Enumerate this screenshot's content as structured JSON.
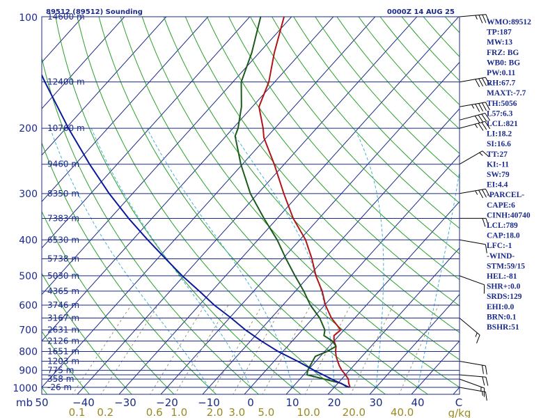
{
  "chart_data": {
    "type": "line",
    "subtype": "skew-t log-p sounding",
    "title": "89512 (89512) Sounding",
    "valid_time": "0000Z 14 AUG 25",
    "pressure_axis": {
      "corner_label": "mb",
      "range_mb": [
        1000,
        100
      ],
      "scale": "log",
      "ticks": [
        100,
        200,
        300,
        400,
        500,
        600,
        700,
        800,
        900,
        1000
      ]
    },
    "temperature_axis": {
      "unit_label": "C",
      "range_c": [
        -50,
        50
      ],
      "ticks": [
        -50,
        -40,
        -30,
        -20,
        -10,
        0,
        10,
        20,
        30,
        40
      ],
      "tick_labels": [
        "50",
        "−40",
        "−30",
        "−20",
        "−10",
        "0",
        "10",
        "20",
        "30",
        "40"
      ]
    },
    "mixing_ratio_axis": {
      "unit_label": "g/kg",
      "ticks": [
        {
          "value": 0.1,
          "label": "0.1"
        },
        {
          "value": 0.2,
          "label": "0.2"
        },
        {
          "value": 0.6,
          "label": "0.6"
        },
        {
          "value": 1.0,
          "label": "1.0"
        },
        {
          "value": 2.0,
          "label": "2.0"
        },
        {
          "value": 3.0,
          "label": "3.0"
        },
        {
          "value": 5.0,
          "label": "5.0"
        },
        {
          "value": 10.0,
          "label": "10.0"
        },
        {
          "value": 20.0,
          "label": "20.0"
        },
        {
          "value": 40.0,
          "label": "40.0"
        }
      ]
    },
    "height_labels": [
      {
        "p": 100,
        "label": "14600 m"
      },
      {
        "p": 150,
        "label": "12400 m"
      },
      {
        "p": 200,
        "label": "10760 m"
      },
      {
        "p": 250,
        "label": "9460 m"
      },
      {
        "p": 300,
        "label": "8350 m"
      },
      {
        "p": 350,
        "label": "7383 m"
      },
      {
        "p": 400,
        "label": "6530 m"
      },
      {
        "p": 450,
        "label": "5738 m"
      },
      {
        "p": 500,
        "label": "5030 m"
      },
      {
        "p": 550,
        "label": "4365 m"
      },
      {
        "p": 600,
        "label": "3746 m"
      },
      {
        "p": 650,
        "label": "3167 m"
      },
      {
        "p": 700,
        "label": "2631 m"
      },
      {
        "p": 750,
        "label": "2126 m"
      },
      {
        "p": 800,
        "label": "1651 m"
      },
      {
        "p": 850,
        "label": "1203 m"
      },
      {
        "p": 900,
        "label": "775 m"
      },
      {
        "p": 950,
        "label": "358 m"
      },
      {
        "p": 1000,
        "label": "-26 m"
      }
    ],
    "grid": {
      "isobars_mb": [
        100,
        150,
        200,
        250,
        300,
        350,
        400,
        450,
        500,
        550,
        600,
        650,
        700,
        750,
        800,
        850,
        900,
        925,
        950,
        1000
      ],
      "isotherms_c": [
        -130,
        -120,
        -110,
        -100,
        -90,
        -80,
        -70,
        -60,
        -50,
        -40,
        -30,
        -20,
        -10,
        0,
        10,
        20,
        30,
        40,
        50
      ],
      "dry_adiabats_c": [
        -50,
        -40,
        -30,
        -20,
        -10,
        0,
        10,
        20,
        30,
        40,
        50,
        60,
        70,
        80,
        90,
        100,
        110,
        120,
        130,
        140,
        150,
        160,
        170,
        180,
        190,
        200,
        210,
        220,
        230,
        240,
        250
      ],
      "moist_adiabats_c": [
        -10,
        0,
        10,
        20,
        30,
        40
      ],
      "mixing_ratio_lines_gkg": [
        0.1,
        0.2,
        0.6,
        1.0,
        2.0,
        3.0,
        5.0,
        10.0,
        20.0,
        40.0
      ]
    },
    "series": [
      {
        "name": "temperature",
        "color": "#b01515",
        "points": [
          {
            "p": 1000,
            "t": 23.8
          },
          {
            "p": 975,
            "t": 22.6
          },
          {
            "p": 950,
            "t": 21.6
          },
          {
            "p": 925,
            "t": 20.0
          },
          {
            "p": 900,
            "t": 18.2
          },
          {
            "p": 875,
            "t": 16.6
          },
          {
            "p": 850,
            "t": 15.2
          },
          {
            "p": 825,
            "t": 13.8
          },
          {
            "p": 800,
            "t": 12.6
          },
          {
            "p": 775,
            "t": 11.6
          },
          {
            "p": 750,
            "t": 10.0
          },
          {
            "p": 725,
            "t": 8.8
          },
          {
            "p": 700,
            "t": 9.2
          },
          {
            "p": 650,
            "t": 4.4
          },
          {
            "p": 600,
            "t": 0.2
          },
          {
            "p": 550,
            "t": -3.6
          },
          {
            "p": 500,
            "t": -8.4
          },
          {
            "p": 450,
            "t": -13.0
          },
          {
            "p": 400,
            "t": -18.6
          },
          {
            "p": 350,
            "t": -26.2
          },
          {
            "p": 300,
            "t": -33.8
          },
          {
            "p": 250,
            "t": -42.4
          },
          {
            "p": 212,
            "t": -50.6
          },
          {
            "p": 200,
            "t": -52.8
          },
          {
            "p": 175,
            "t": -58.4
          },
          {
            "p": 150,
            "t": -61.4
          },
          {
            "p": 125,
            "t": -66.4
          },
          {
            "p": 100,
            "t": -71.8
          }
        ]
      },
      {
        "name": "dewpoint",
        "color": "#1a5a1a",
        "points": [
          {
            "p": 1000,
            "t": 23.2
          },
          {
            "p": 975,
            "t": 20.8
          },
          {
            "p": 950,
            "t": 15.8
          },
          {
            "p": 925,
            "t": 10.8
          },
          {
            "p": 900,
            "t": 10.0
          },
          {
            "p": 875,
            "t": 9.6
          },
          {
            "p": 850,
            "t": 9.2
          },
          {
            "p": 825,
            "t": 8.8
          },
          {
            "p": 800,
            "t": 10.6
          },
          {
            "p": 775,
            "t": 11.6
          },
          {
            "p": 750,
            "t": 9.6
          },
          {
            "p": 725,
            "t": 6.4
          },
          {
            "p": 700,
            "t": 5.4
          },
          {
            "p": 650,
            "t": 1.6
          },
          {
            "p": 600,
            "t": -3.4
          },
          {
            "p": 550,
            "t": -8.0
          },
          {
            "p": 500,
            "t": -13.4
          },
          {
            "p": 450,
            "t": -19.2
          },
          {
            "p": 400,
            "t": -25.4
          },
          {
            "p": 350,
            "t": -33.2
          },
          {
            "p": 300,
            "t": -41.8
          },
          {
            "p": 250,
            "t": -50.4
          },
          {
            "p": 210,
            "t": -57.8
          },
          {
            "p": 200,
            "t": -58.8
          },
          {
            "p": 175,
            "t": -62.6
          },
          {
            "p": 150,
            "t": -68.0
          },
          {
            "p": 125,
            "t": -71.8
          },
          {
            "p": 100,
            "t": -77.4
          }
        ]
      },
      {
        "name": "parcel",
        "color": "#0a1a9a",
        "points": [
          {
            "p": 1000,
            "t": 23.6
          },
          {
            "p": 950,
            "t": 17.6
          },
          {
            "p": 900,
            "t": 11.6
          },
          {
            "p": 850,
            "t": 5.6
          },
          {
            "p": 800,
            "t": -1.2
          },
          {
            "p": 750,
            "t": -7.4
          },
          {
            "p": 700,
            "t": -13.6
          },
          {
            "p": 650,
            "t": -19.6
          },
          {
            "p": 600,
            "t": -26.4
          },
          {
            "p": 550,
            "t": -33.0
          },
          {
            "p": 500,
            "t": -40.4
          },
          {
            "p": 450,
            "t": -48.0
          },
          {
            "p": 400,
            "t": -56.4
          },
          {
            "p": 350,
            "t": -65.6
          },
          {
            "p": 300,
            "t": -75.6
          },
          {
            "p": 250,
            "t": -86.6
          },
          {
            "p": 200,
            "t": -99.4
          },
          {
            "p": 150,
            "t": -115.0
          },
          {
            "p": 100,
            "t": -136.2
          }
        ]
      }
    ],
    "wind_barbs": [
      {
        "p": 100,
        "dir": 85,
        "spd": 35
      },
      {
        "p": 150,
        "dir": 80,
        "spd": 40
      },
      {
        "p": 175,
        "dir": 80,
        "spd": 45
      },
      {
        "p": 190,
        "dir": 75,
        "spd": 40
      },
      {
        "p": 200,
        "dir": 75,
        "spd": 35
      },
      {
        "p": 250,
        "dir": 60,
        "spd": 15
      },
      {
        "p": 300,
        "dir": 80,
        "spd": 35
      },
      {
        "p": 350,
        "dir": 90,
        "spd": 20
      },
      {
        "p": 400,
        "dir": 100,
        "spd": 10
      },
      {
        "p": 500,
        "dir": 110,
        "spd": 10
      },
      {
        "p": 650,
        "dir": 130,
        "spd": 15
      },
      {
        "p": 850,
        "dir": 100,
        "spd": 20
      },
      {
        "p": 925,
        "dir": 95,
        "spd": 20
      },
      {
        "p": 950,
        "dir": 110,
        "spd": 15
      },
      {
        "p": 1000,
        "dir": 100,
        "spd": 15
      }
    ],
    "indices": [
      "WMO:89512",
      "TP:187",
      "MW:13",
      "FRZ: BG",
      "WB0: BG",
      "PW:0.11",
      "RH:67.7",
      "MAXT:-7.7",
      "TH:5056",
      "L57:6.3",
      "LCL:821",
      "LI:18.2",
      "SI:16.6",
      "TT:27",
      "KI:-11",
      "SW:79",
      "EI:4.4",
      "-PARCEL-",
      "CAPE:6",
      "CINH:40740",
      "LCL:789",
      "CAP:18.0",
      "LFC:-1",
      "-WIND-",
      "STM:59/15",
      "HEL:-81",
      "SHR+:0.0",
      "SRDS:129",
      "EHI:0.0",
      "BRN:0.1",
      "BSHR:51"
    ],
    "colors": {
      "frame": "#1a2a8a",
      "isobar": "#1a2a8a",
      "isotherm": "#1a2a8a",
      "dry_adiabat": "#2aa02a",
      "moist_adiabat": "#44b0d6",
      "mixing_ratio": "#9a9a70",
      "mixing_ratio_label": "#9a8a20",
      "temperature": "#b01515",
      "dewpoint": "#1a5a1a",
      "parcel": "#0a1a9a",
      "barb": "#000000",
      "text": "#1a2a8a"
    }
  }
}
